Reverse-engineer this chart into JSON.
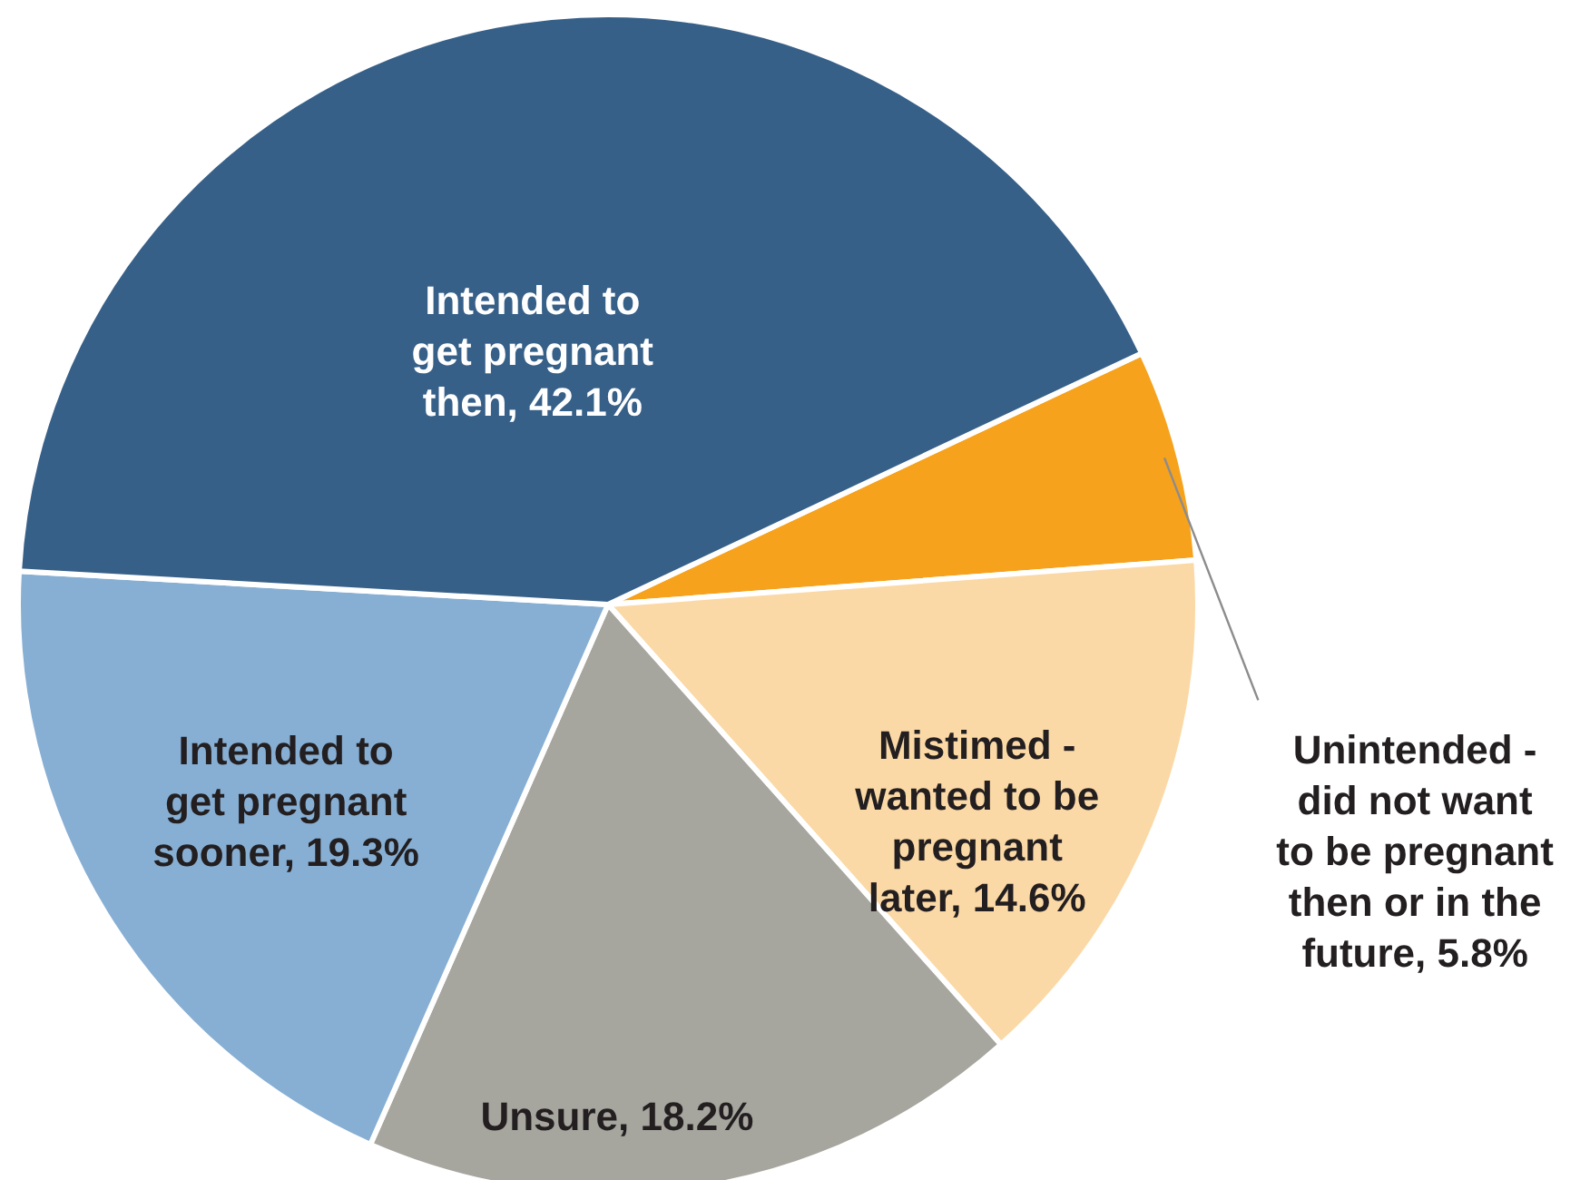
{
  "chart_data": {
    "type": "pie",
    "categories": [
      "Unintended - did not want to be pregnant then or in the future",
      "Mistimed - wanted to be pregnant later",
      "Unsure",
      "Intended to get pregnant sooner",
      "Intended to get pregnant then"
    ],
    "values": [
      5.8,
      14.6,
      18.2,
      19.3,
      42.1
    ],
    "value_labels": [
      "5.8%",
      "14.6%",
      "18.2%",
      "19.3%",
      "42.1%"
    ],
    "colors": [
      "#f6a21d",
      "#fbd9a6",
      "#a6a59e",
      "#87afd4",
      "#376089"
    ]
  }
}
